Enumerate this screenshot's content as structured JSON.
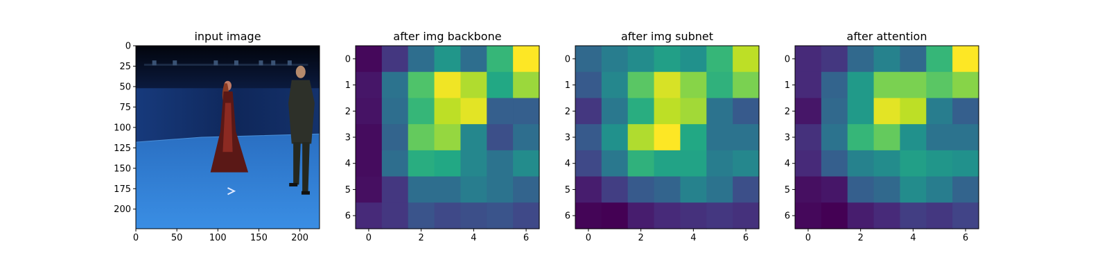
{
  "chart_data": [
    {
      "type": "image",
      "title": "input image",
      "image_size": [
        224,
        224
      ],
      "xlim": [
        0,
        224
      ],
      "ylim": [
        224,
        0
      ],
      "xticks": [
        0,
        50,
        100,
        150,
        200
      ],
      "yticks": [
        0,
        25,
        50,
        75,
        100,
        125,
        150,
        175,
        200
      ],
      "content": "photo of two people standing in a blue-walled studio room",
      "colors": {
        "floor": "#2f7fd6",
        "wall": "#14306a",
        "ceiling": "#050a18",
        "dress": "#5a1816",
        "suit": "#2d3029"
      }
    },
    {
      "type": "heatmap",
      "title": "after img backbone",
      "colormap": "viridis",
      "x": [
        0,
        1,
        2,
        3,
        4,
        5,
        6
      ],
      "y": [
        0,
        1,
        2,
        3,
        4,
        5,
        6
      ],
      "xticks": [
        0,
        2,
        4,
        6
      ],
      "yticks": [
        0,
        1,
        2,
        3,
        4,
        5,
        6
      ],
      "values": [
        [
          0.02,
          0.16,
          0.36,
          0.52,
          0.36,
          0.66,
          1.0
        ],
        [
          0.06,
          0.38,
          0.72,
          0.98,
          0.88,
          0.6,
          0.85
        ],
        [
          0.05,
          0.36,
          0.66,
          0.9,
          0.96,
          0.3,
          0.3
        ],
        [
          0.03,
          0.32,
          0.76,
          0.84,
          0.46,
          0.24,
          0.36
        ],
        [
          0.03,
          0.36,
          0.62,
          0.6,
          0.46,
          0.38,
          0.48
        ],
        [
          0.04,
          0.16,
          0.36,
          0.36,
          0.42,
          0.38,
          0.32
        ],
        [
          0.12,
          0.16,
          0.26,
          0.22,
          0.24,
          0.26,
          0.22
        ]
      ]
    },
    {
      "type": "heatmap",
      "title": "after img subnet",
      "colormap": "viridis",
      "x": [
        0,
        1,
        2,
        3,
        4,
        5,
        6
      ],
      "y": [
        0,
        1,
        2,
        3,
        4,
        5,
        6
      ],
      "xticks": [
        0,
        2,
        4,
        6
      ],
      "yticks": [
        0,
        1,
        2,
        3,
        4,
        5,
        6
      ],
      "values": [
        [
          0.34,
          0.42,
          0.48,
          0.56,
          0.5,
          0.66,
          0.9
        ],
        [
          0.28,
          0.46,
          0.74,
          0.94,
          0.82,
          0.64,
          0.8
        ],
        [
          0.16,
          0.4,
          0.62,
          0.9,
          0.86,
          0.38,
          0.28
        ],
        [
          0.28,
          0.5,
          0.88,
          1.0,
          0.6,
          0.38,
          0.38
        ],
        [
          0.22,
          0.4,
          0.64,
          0.58,
          0.58,
          0.42,
          0.46
        ],
        [
          0.08,
          0.18,
          0.28,
          0.32,
          0.44,
          0.38,
          0.24
        ],
        [
          0.01,
          0.0,
          0.08,
          0.12,
          0.14,
          0.16,
          0.14
        ]
      ]
    },
    {
      "type": "heatmap",
      "title": "after attention",
      "colormap": "viridis",
      "x": [
        0,
        1,
        2,
        3,
        4,
        5,
        6
      ],
      "y": [
        0,
        1,
        2,
        3,
        4,
        5,
        6
      ],
      "xticks": [
        0,
        2,
        4,
        6
      ],
      "yticks": [
        0,
        1,
        2,
        3,
        4,
        5,
        6
      ],
      "values": [
        [
          0.12,
          0.16,
          0.34,
          0.44,
          0.34,
          0.66,
          1.0
        ],
        [
          0.12,
          0.32,
          0.54,
          0.8,
          0.8,
          0.74,
          0.82
        ],
        [
          0.06,
          0.34,
          0.54,
          0.96,
          0.9,
          0.42,
          0.3
        ],
        [
          0.14,
          0.38,
          0.66,
          0.76,
          0.5,
          0.38,
          0.38
        ],
        [
          0.12,
          0.3,
          0.44,
          0.48,
          0.56,
          0.52,
          0.5
        ],
        [
          0.04,
          0.06,
          0.3,
          0.34,
          0.48,
          0.42,
          0.32
        ],
        [
          0.02,
          0.0,
          0.08,
          0.12,
          0.18,
          0.16,
          0.2
        ]
      ]
    }
  ]
}
